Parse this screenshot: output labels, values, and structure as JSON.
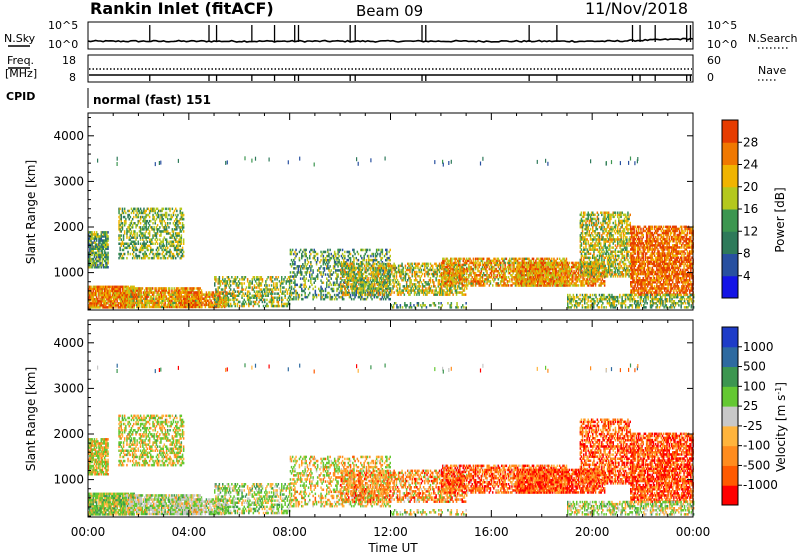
{
  "header": {
    "station": "Rankin Inlet (fitACF)",
    "beam": "Beam 09",
    "date": "11/Nov/2018"
  },
  "noise_panel": {
    "left_label": "N.Sky",
    "right_label": "N.Search",
    "left_ticks": [
      "10^5",
      "10^0"
    ],
    "right_ticks": [
      "10^5",
      "10^0"
    ]
  },
  "freq_panel": {
    "left_label_line1": "Freq.",
    "left_label_line2": "[MHz]",
    "right_label": "Nave",
    "left_ticks": [
      "18",
      "8"
    ],
    "right_ticks": [
      "60",
      "0"
    ]
  },
  "cpid": {
    "label": "CPID",
    "mode": "normal (fast) 151"
  },
  "colors": {
    "power_scale": [
      "#1414e6",
      "#2850a0",
      "#2e7a5a",
      "#3c9650",
      "#b4c81e",
      "#f0b400",
      "#f07800",
      "#e63c00",
      "#ff0000"
    ],
    "velocity_scale": [
      "#ff0000",
      "#ff5a00",
      "#ff8c1e",
      "#ffb43c",
      "#c8c8c8",
      "#64c832",
      "#3c9650",
      "#2e6aa0",
      "#1e3cc8"
    ],
    "ground_scatter": "#c8c8c8"
  },
  "chart_data": [
    {
      "type": "heatmap",
      "title": "Power",
      "xlabel": "Time UT",
      "ylabel": "Slant Range [km]",
      "x_ticks": [
        "00:00",
        "04:00",
        "08:00",
        "12:00",
        "16:00",
        "20:00",
        "00:00"
      ],
      "y_ticks": [
        1000,
        2000,
        3000,
        4000
      ],
      "ylim": [
        180,
        4500
      ],
      "colorbar": {
        "label": "Power [dB]",
        "ticks": [
          "28",
          "24",
          "20",
          "16",
          "12",
          "8",
          "4"
        ],
        "range": [
          0,
          30
        ]
      }
    },
    {
      "type": "heatmap",
      "title": "Velocity",
      "xlabel": "Time UT",
      "ylabel": "Slant Range [km]",
      "x_ticks": [
        "00:00",
        "04:00",
        "08:00",
        "12:00",
        "16:00",
        "20:00",
        "00:00"
      ],
      "y_ticks": [
        1000,
        2000,
        3000,
        4000
      ],
      "ylim": [
        180,
        4500
      ],
      "colorbar": {
        "label_main": "Velocity  [m s",
        "label_sup": "-1",
        "label_end": "]",
        "ticks": [
          "1000",
          "500",
          "100",
          "25",
          "-25",
          "-100",
          "-500",
          "-1000"
        ]
      }
    }
  ],
  "x_axis": {
    "label": "Time UT",
    "ticks": [
      "00:00",
      "04:00",
      "08:00",
      "12:00",
      "16:00",
      "20:00",
      "00:00"
    ]
  }
}
